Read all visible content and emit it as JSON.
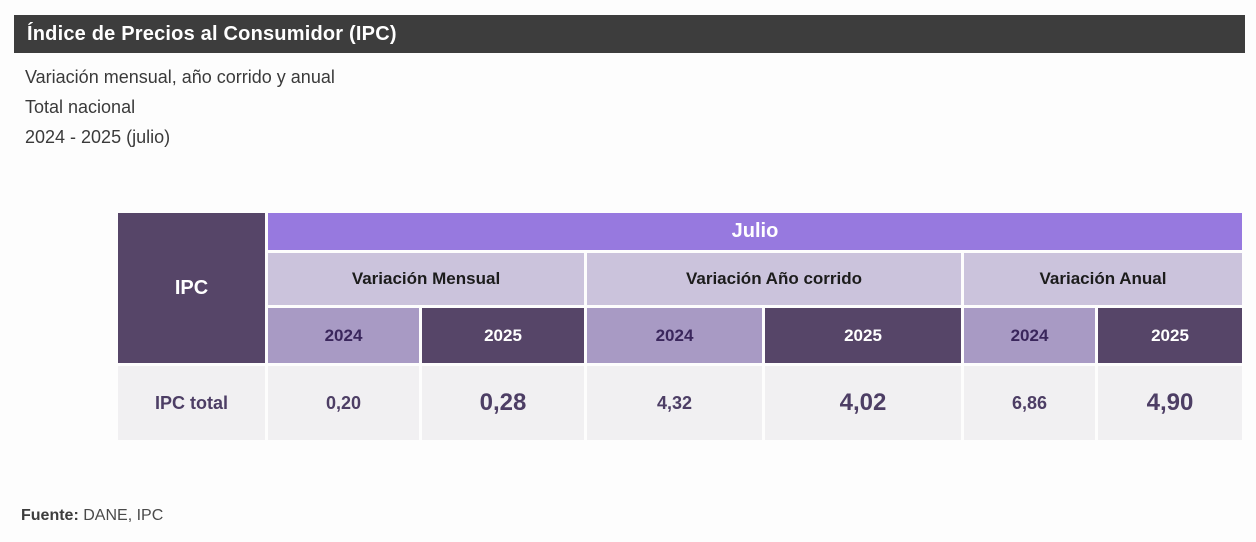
{
  "header": {
    "title": "Índice de Precios al Consumidor (IPC)"
  },
  "subtitle": {
    "lines": [
      "Variación mensual, año corrido y anual",
      "Total nacional",
      "2024 - 2025 (julio)"
    ]
  },
  "table": {
    "corner_label": "IPC",
    "period_label": "Julio",
    "groups": [
      {
        "label": "Variación Mensual",
        "years": [
          "2024",
          "2025"
        ]
      },
      {
        "label": "Variación Año corrido",
        "years": [
          "2024",
          "2025"
        ]
      },
      {
        "label": "Variación Anual",
        "years": [
          "2024",
          "2025"
        ]
      }
    ],
    "row": {
      "label": "IPC total",
      "values": [
        "0,20",
        "0,28",
        "4,32",
        "4,02",
        "6,86",
        "4,90"
      ]
    }
  },
  "footer": {
    "label": "Fuente:",
    "text": "DANE, IPC"
  },
  "colors": {
    "title_bar_bg": "#3d3d3d",
    "period_bg": "#9779df",
    "group_header_bg": "#cbc3dc",
    "year_2024_bg": "#a89ac4",
    "year_2025_bg": "#564568",
    "corner_bg": "#564568",
    "data_row_bg": "#f1f0f2",
    "value_text": "#4d3e65"
  },
  "chart_data": {
    "type": "table",
    "title": "Índice de Precios al Consumidor (IPC)",
    "subtitle": "Variación mensual, año corrido y anual - Total nacional - 2024 - 2025 (julio)",
    "period": "Julio",
    "column_groups": [
      "Variación Mensual",
      "Variación Año corrido",
      "Variación Anual"
    ],
    "columns": [
      "Variación Mensual 2024",
      "Variación Mensual 2025",
      "Variación Año corrido 2024",
      "Variación Año corrido 2025",
      "Variación Anual 2024",
      "Variación Anual 2025"
    ],
    "rows": [
      {
        "label": "IPC total",
        "values": [
          0.2,
          0.28,
          4.32,
          4.02,
          6.86,
          4.9
        ]
      }
    ],
    "source": "Fuente: DANE, IPC"
  }
}
